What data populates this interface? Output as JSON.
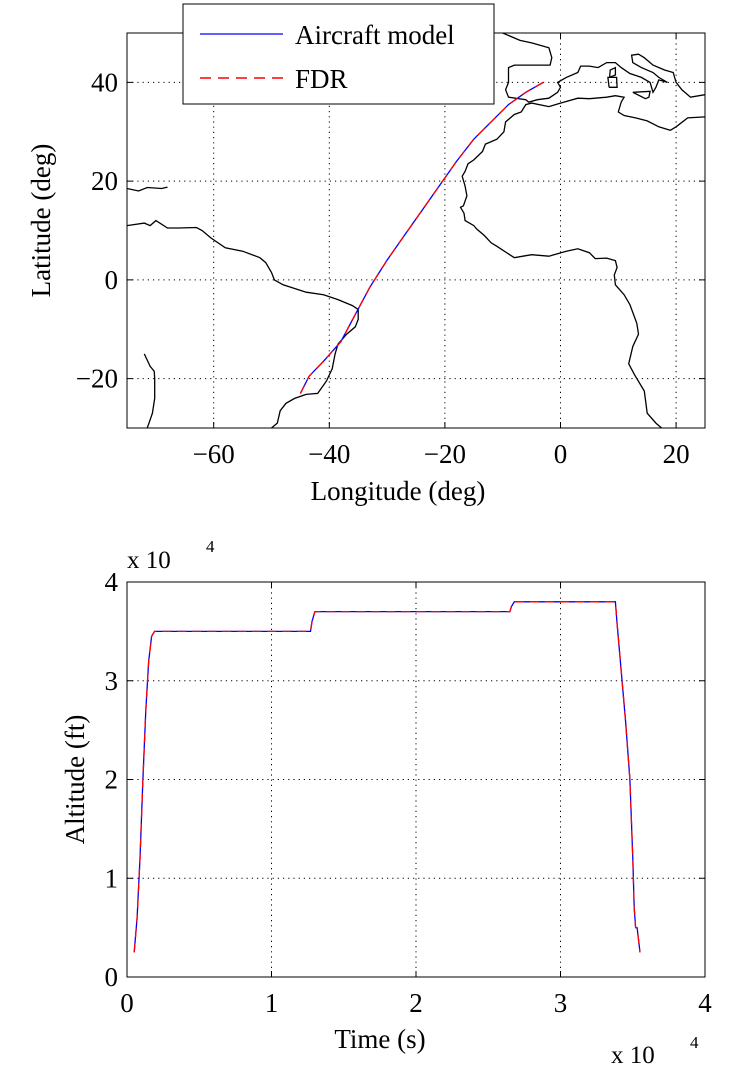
{
  "chart_data": [
    {
      "type": "line",
      "xlabel": "Longitude (deg)",
      "ylabel": "Latitude (deg)",
      "xlim": [
        -75,
        25
      ],
      "ylim": [
        -30,
        50
      ],
      "xticks": [
        -60,
        -40,
        -20,
        0,
        20
      ],
      "yticks": [
        -20,
        0,
        20,
        40
      ],
      "xtick_labels": [
        "−60",
        "−40",
        "−20",
        "0",
        "20"
      ],
      "ytick_labels": [
        "−20",
        "0",
        "20",
        "40"
      ],
      "grid": true,
      "legend": {
        "placement": "top-left",
        "entries": [
          "Aircraft model",
          "FDR"
        ]
      },
      "series": [
        {
          "name": "Aircraft model",
          "color": "#0000ff",
          "style": "solid",
          "lon": [
            -45.0,
            -43.5,
            -41.0,
            -38.0,
            -35.5,
            -33.0,
            -30.0,
            -27.0,
            -24.0,
            -21.0,
            -18.0,
            -15.0,
            -12.0,
            -9.0,
            -6.0,
            -3.0
          ],
          "lat": [
            -23.0,
            -19.5,
            -16.5,
            -12.5,
            -7.0,
            -1.5,
            4.0,
            9.0,
            14.0,
            19.0,
            24.0,
            28.5,
            32.0,
            35.5,
            38.0,
            40.0
          ]
        },
        {
          "name": "FDR",
          "color": "#ff0000",
          "style": "dashed",
          "lon": [
            -45.0,
            -43.5,
            -41.0,
            -38.0,
            -35.5,
            -33.0,
            -30.0,
            -27.0,
            -24.0,
            -21.0,
            -18.0,
            -15.0,
            -12.0,
            -9.0,
            -6.0,
            -3.0
          ],
          "lat": [
            -23.0,
            -19.5,
            -16.5,
            -12.5,
            -7.0,
            -1.5,
            4.0,
            9.0,
            14.0,
            19.0,
            24.0,
            28.5,
            32.0,
            35.5,
            38.0,
            40.0
          ]
        }
      ],
      "coastlines": [
        [
          [
            -75,
            11
          ],
          [
            -72,
            11.5
          ],
          [
            -71,
            11
          ],
          [
            -70,
            12
          ],
          [
            -68,
            10.5
          ],
          [
            -66,
            10.5
          ],
          [
            -63,
            10.6
          ],
          [
            -62,
            10
          ],
          [
            -60.5,
            8.5
          ],
          [
            -58,
            6.5
          ],
          [
            -55,
            5.8
          ],
          [
            -52,
            4.5
          ],
          [
            -51,
            3.5
          ],
          [
            -50,
            1.5
          ],
          [
            -49.5,
            0
          ],
          [
            -48,
            -1
          ],
          [
            -44,
            -2.5
          ],
          [
            -41,
            -3
          ],
          [
            -38.5,
            -4
          ],
          [
            -36,
            -5.2
          ],
          [
            -35,
            -6
          ],
          [
            -35,
            -8
          ],
          [
            -35.5,
            -9.5
          ],
          [
            -37,
            -11
          ],
          [
            -38.5,
            -13
          ],
          [
            -39,
            -15
          ],
          [
            -39.5,
            -18
          ],
          [
            -40.5,
            -20.5
          ],
          [
            -42,
            -23
          ],
          [
            -44,
            -23.2
          ],
          [
            -46,
            -24
          ],
          [
            -47.5,
            -25
          ],
          [
            -48.5,
            -26.5
          ],
          [
            -49,
            -29
          ],
          [
            -50,
            -30
          ]
        ],
        [
          [
            -75,
            18.5
          ],
          [
            -73,
            18
          ],
          [
            -71.5,
            18.7
          ],
          [
            -69,
            18.5
          ],
          [
            -68,
            18.8
          ]
        ],
        [
          [
            -10,
            50
          ],
          [
            -7,
            48.5
          ],
          [
            -5,
            48
          ],
          [
            -2,
            47
          ],
          [
            -1.5,
            45
          ],
          [
            -1.8,
            43.5
          ],
          [
            -5,
            43.5
          ],
          [
            -8,
            43.5
          ],
          [
            -9,
            43
          ],
          [
            -9,
            40
          ],
          [
            -9.5,
            38.5
          ],
          [
            -9,
            37
          ],
          [
            -6,
            36.5
          ],
          [
            -5.5,
            36
          ],
          [
            -4,
            36.5
          ],
          [
            -2,
            36.8
          ],
          [
            -0.5,
            38
          ],
          [
            0,
            39
          ],
          [
            -0.5,
            40
          ],
          [
            1,
            41
          ],
          [
            3,
            42
          ],
          [
            3.5,
            43.3
          ],
          [
            5,
            43.3
          ],
          [
            6.5,
            43
          ],
          [
            8,
            44
          ],
          [
            9.5,
            44
          ],
          [
            10.5,
            43
          ],
          [
            12,
            41.8
          ],
          [
            14,
            41
          ],
          [
            15.5,
            40
          ],
          [
            16,
            38
          ],
          [
            16.5,
            39
          ],
          [
            17,
            40.5
          ],
          [
            18.5,
            40
          ],
          [
            17,
            41
          ],
          [
            16,
            42
          ],
          [
            14,
            43
          ],
          [
            12.5,
            44
          ],
          [
            12.3,
            45.5
          ],
          [
            13.5,
            45.7
          ],
          [
            14.5,
            45
          ],
          [
            16,
            43.5
          ],
          [
            18,
            42.5
          ],
          [
            19.5,
            42
          ],
          [
            20,
            40
          ],
          [
            21,
            38.5
          ],
          [
            22.5,
            37
          ],
          [
            25,
            37.5
          ]
        ],
        [
          [
            25,
            33
          ],
          [
            22,
            32.8
          ],
          [
            20,
            31
          ],
          [
            19,
            30.3
          ],
          [
            17,
            31
          ],
          [
            15,
            32.2
          ],
          [
            13,
            32.8
          ],
          [
            11,
            33.3
          ],
          [
            10,
            34
          ],
          [
            10.5,
            36
          ],
          [
            11,
            37
          ],
          [
            9.5,
            37.3
          ],
          [
            8,
            37
          ],
          [
            5,
            36.7
          ],
          [
            3,
            36.8
          ],
          [
            0,
            35.8
          ],
          [
            -2,
            35.1
          ],
          [
            -5,
            35.8
          ],
          [
            -6,
            35.5
          ],
          [
            -6.8,
            34
          ],
          [
            -8,
            33.5
          ],
          [
            -9.5,
            32
          ],
          [
            -9.8,
            30
          ],
          [
            -11,
            28.5
          ],
          [
            -13,
            27.5
          ],
          [
            -13.5,
            26
          ],
          [
            -15,
            24.3
          ],
          [
            -16,
            23.5
          ],
          [
            -16.5,
            22
          ],
          [
            -17,
            21
          ],
          [
            -16.5,
            19
          ],
          [
            -16.2,
            17
          ],
          [
            -16.8,
            15
          ],
          [
            -17.3,
            14.7
          ],
          [
            -16.7,
            13.5
          ],
          [
            -16.5,
            12
          ],
          [
            -15,
            11
          ],
          [
            -14.5,
            10.3
          ],
          [
            -13.2,
            9
          ],
          [
            -12,
            7.5
          ],
          [
            -11,
            6.8
          ],
          [
            -8,
            4.5
          ],
          [
            -5,
            5.1
          ],
          [
            -2,
            4.8
          ],
          [
            1,
            5.8
          ],
          [
            3,
            6.3
          ],
          [
            5,
            5.5
          ],
          [
            6,
            4.3
          ],
          [
            8,
            4.4
          ],
          [
            9.5,
            3.9
          ],
          [
            9.8,
            2.5
          ],
          [
            9.3,
            1
          ],
          [
            9.5,
            -1
          ],
          [
            11,
            -3
          ],
          [
            12,
            -5
          ],
          [
            13.2,
            -8.8
          ],
          [
            13.5,
            -11
          ],
          [
            12.5,
            -13.5
          ],
          [
            11.8,
            -17
          ],
          [
            12.8,
            -19.2
          ],
          [
            14.5,
            -22.5
          ],
          [
            15,
            -27
          ],
          [
            16.5,
            -29
          ],
          [
            17.5,
            -30
          ]
        ],
        [
          [
            -72,
            -15
          ],
          [
            -71,
            -17.5
          ],
          [
            -70.3,
            -18.5
          ],
          [
            -70.2,
            -20
          ],
          [
            -70.2,
            -24
          ],
          [
            -70.6,
            -27
          ],
          [
            -71.2,
            -29
          ],
          [
            -71.5,
            -30
          ]
        ],
        [
          [
            8.5,
            41
          ],
          [
            9.5,
            41.5
          ],
          [
            9.5,
            43
          ],
          [
            8.6,
            42.5
          ],
          [
            8.5,
            41
          ]
        ],
        [
          [
            8.4,
            39
          ],
          [
            9.8,
            39
          ],
          [
            9.7,
            41
          ],
          [
            8.2,
            41
          ],
          [
            8.4,
            39
          ]
        ],
        [
          [
            12.5,
            38
          ],
          [
            15.5,
            38.2
          ],
          [
            15.3,
            37
          ],
          [
            14.7,
            36.7
          ],
          [
            12.5,
            38
          ]
        ]
      ]
    },
    {
      "type": "line",
      "xlabel": "Time (s)",
      "ylabel": "Altitude (ft)",
      "xlim": [
        0,
        40000
      ],
      "ylim": [
        0,
        40000
      ],
      "xticks": [
        0,
        10000,
        20000,
        30000,
        40000
      ],
      "yticks": [
        0,
        10000,
        20000,
        30000,
        40000
      ],
      "xtick_labels": [
        "0",
        "1",
        "2",
        "3",
        "4"
      ],
      "ytick_labels": [
        "0",
        "1",
        "2",
        "3",
        "4"
      ],
      "x_multiplier": "x 10",
      "y_multiplier": "x 10",
      "multiplier_exponent": "4",
      "grid": true,
      "series": [
        {
          "name": "Aircraft model",
          "color": "#0000ff",
          "style": "solid",
          "x": [
            500,
            700,
            900,
            1100,
            1300,
            1500,
            1700,
            1900,
            12700,
            12800,
            13000,
            26500,
            26600,
            26800,
            33800,
            33900,
            34200,
            34500,
            34800,
            35000,
            35100,
            35200,
            35300,
            35500
          ],
          "y": [
            2500,
            6000,
            12000,
            20000,
            27000,
            32000,
            34500,
            35000,
            35000,
            36000,
            37000,
            37000,
            37500,
            38000,
            38000,
            36000,
            31000,
            26000,
            20000,
            12000,
            7000,
            5000,
            5000,
            2500
          ]
        },
        {
          "name": "FDR",
          "color": "#ff0000",
          "style": "dashed",
          "x": [
            500,
            700,
            900,
            1100,
            1300,
            1500,
            1700,
            1900,
            12700,
            12800,
            13000,
            26500,
            26600,
            26800,
            33800,
            33900,
            34200,
            34500,
            34800,
            35000,
            35100,
            35200,
            35300,
            35500
          ],
          "y": [
            2500,
            6000,
            12000,
            20000,
            27000,
            32000,
            34500,
            35000,
            35000,
            36000,
            37000,
            37000,
            37500,
            38000,
            38000,
            36000,
            31000,
            26000,
            20000,
            12000,
            7000,
            5000,
            5000,
            2500
          ]
        }
      ]
    }
  ]
}
